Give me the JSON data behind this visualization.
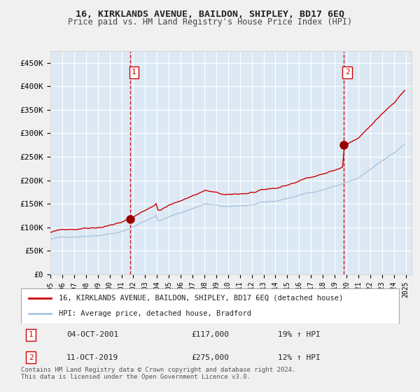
{
  "title_line1": "16, KIRKLANDS AVENUE, BAILDON, SHIPLEY, BD17 6EQ",
  "title_line2": "Price paid vs. HM Land Registry's House Price Index (HPI)",
  "xlabel": "",
  "ylabel": "",
  "ylim": [
    0,
    475000
  ],
  "yticks": [
    0,
    50000,
    100000,
    150000,
    200000,
    250000,
    300000,
    350000,
    400000,
    450000
  ],
  "ytick_labels": [
    "£0",
    "£50K",
    "£100K",
    "£150K",
    "£200K",
    "£250K",
    "£300K",
    "£350K",
    "£400K",
    "£450K"
  ],
  "x_start_year": 1995,
  "x_end_year": 2025,
  "sale1_date": 2001.75,
  "sale1_price": 117000,
  "sale1_label": "1",
  "sale1_text": "04-OCT-2001",
  "sale1_amount": "£117,000",
  "sale1_hpi": "19% ↑ HPI",
  "sale2_date": 2019.77,
  "sale2_price": 275000,
  "sale2_label": "2",
  "sale2_text": "11-OCT-2019",
  "sale2_amount": "£275,000",
  "sale2_hpi": "12% ↑ HPI",
  "line_color_price": "#cc0000",
  "line_color_hpi": "#aac4e0",
  "marker_color": "#990000",
  "vline_color": "#cc0000",
  "background_color": "#dce9f5",
  "plot_bg": "#dce9f5",
  "grid_color": "#ffffff",
  "legend_label1": "16, KIRKLANDS AVENUE, BAILDON, SHIPLEY, BD17 6EQ (detached house)",
  "legend_label2": "HPI: Average price, detached house, Bradford",
  "footer": "Contains HM Land Registry data © Crown copyright and database right 2024.\nThis data is licensed under the Open Government Licence v3.0.",
  "title_fontsize": 10,
  "subtitle_fontsize": 9
}
